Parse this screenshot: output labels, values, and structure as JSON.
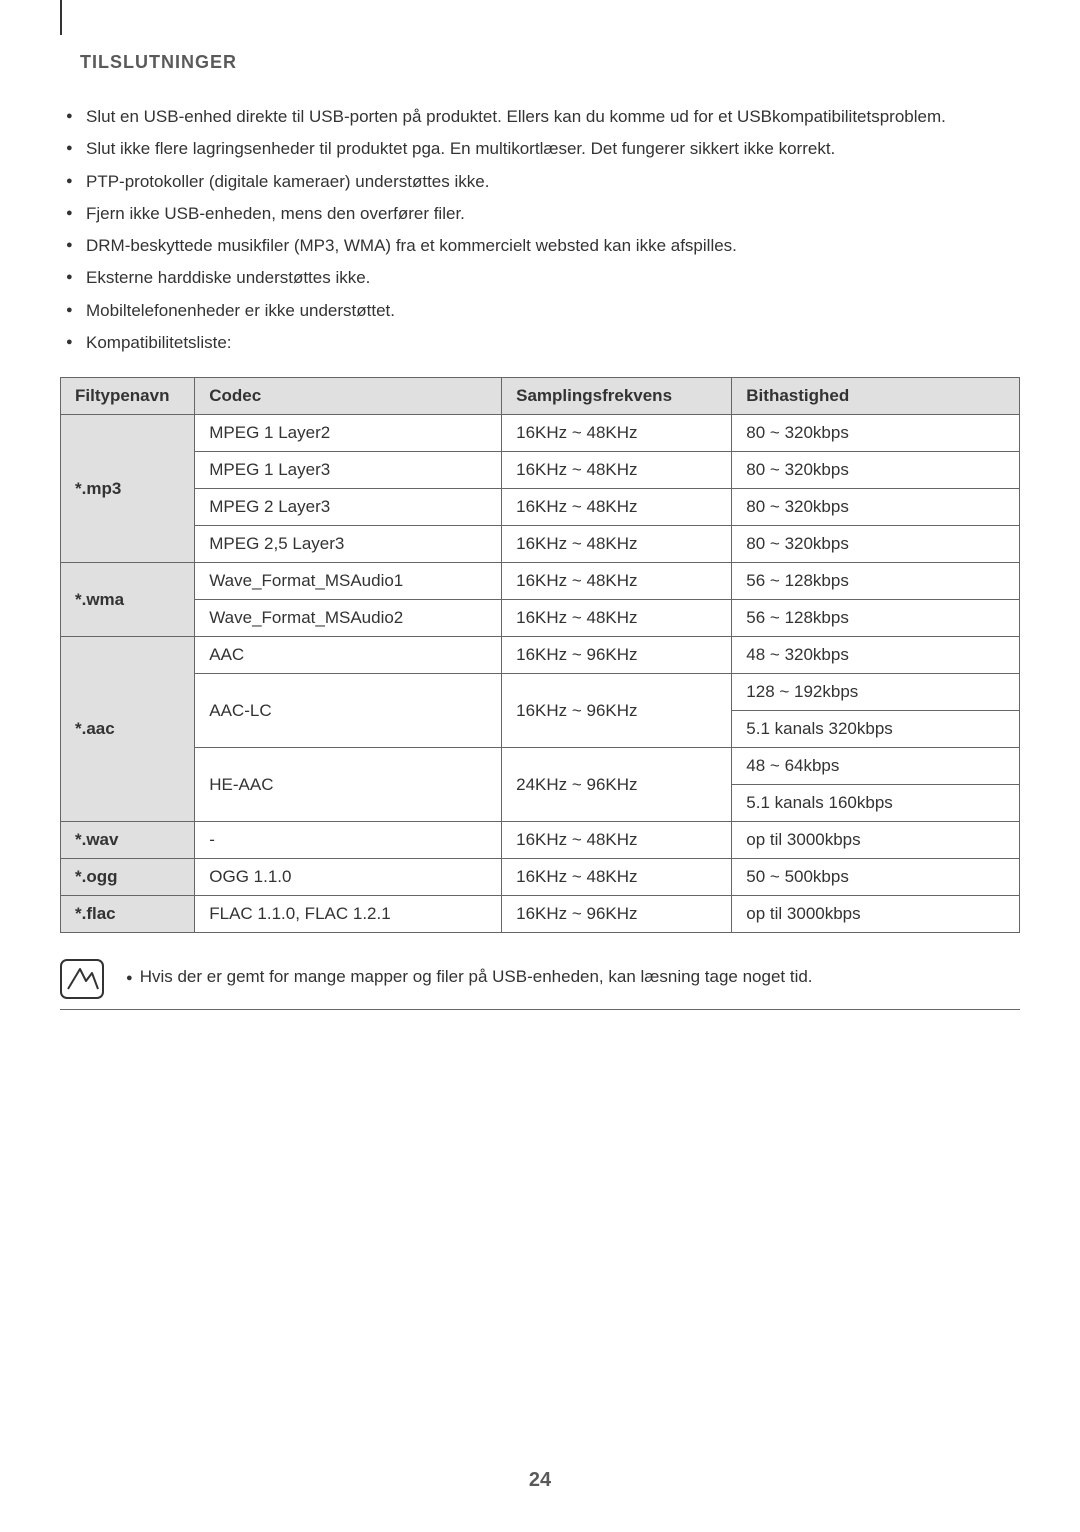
{
  "heading": "TILSLUTNINGER",
  "bullets": [
    "Slut en USB-enhed direkte til USB-porten på produktet. Ellers kan du komme ud for et USBkompatibilitetsproblem.",
    "Slut ikke flere lagringsenheder til produktet pga. En multikortlæser. Det fungerer sikkert ikke korrekt.",
    "PTP-protokoller (digitale kameraer) understøttes ikke.",
    "Fjern ikke USB-enheden, mens den overfører filer.",
    "DRM-beskyttede musikfiler (MP3, WMA) fra et kommercielt websted kan ikke afspilles.",
    "Eksterne harddiske understøttes ikke.",
    "Mobiltelefonenheder er ikke understøttet.",
    "Kompatibilitetsliste:"
  ],
  "table": {
    "headers": {
      "file": "Filtypenavn",
      "codec": "Codec",
      "samp": "Samplingsfrekvens",
      "bit": "Bithastighed"
    },
    "groups": [
      {
        "file": "*.mp3",
        "rows": [
          {
            "codec": "MPEG 1 Layer2",
            "samp": "16KHz ~ 48KHz",
            "bit": [
              "80 ~ 320kbps"
            ]
          },
          {
            "codec": "MPEG 1 Layer3",
            "samp": "16KHz ~ 48KHz",
            "bit": [
              "80 ~ 320kbps"
            ]
          },
          {
            "codec": "MPEG 2 Layer3",
            "samp": "16KHz ~ 48KHz",
            "bit": [
              "80 ~ 320kbps"
            ]
          },
          {
            "codec": "MPEG 2,5 Layer3",
            "samp": "16KHz ~ 48KHz",
            "bit": [
              "80 ~ 320kbps"
            ]
          }
        ]
      },
      {
        "file": "*.wma",
        "rows": [
          {
            "codec": "Wave_Format_MSAudio1",
            "samp": "16KHz ~ 48KHz",
            "bit": [
              "56 ~ 128kbps"
            ]
          },
          {
            "codec": "Wave_Format_MSAudio2",
            "samp": "16KHz ~ 48KHz",
            "bit": [
              "56 ~ 128kbps"
            ]
          }
        ]
      },
      {
        "file": "*.aac",
        "rows": [
          {
            "codec": "AAC",
            "samp": "16KHz ~ 96KHz",
            "bit": [
              "48 ~ 320kbps"
            ]
          },
          {
            "codec": "AAC-LC",
            "samp": "16KHz ~ 96KHz",
            "bit": [
              "128 ~ 192kbps",
              "5.1 kanals 320kbps"
            ]
          },
          {
            "codec": "HE-AAC",
            "samp": "24KHz ~ 96KHz",
            "bit": [
              "48 ~ 64kbps",
              "5.1 kanals 160kbps"
            ]
          }
        ]
      },
      {
        "file": "*.wav",
        "rows": [
          {
            "codec": "-",
            "samp": "16KHz ~ 48KHz",
            "bit": [
              "op til 3000kbps"
            ]
          }
        ]
      },
      {
        "file": "*.ogg",
        "rows": [
          {
            "codec": "OGG 1.1.0",
            "samp": "16KHz ~ 48KHz",
            "bit": [
              "50 ~ 500kbps"
            ]
          }
        ]
      },
      {
        "file": "*.flac",
        "rows": [
          {
            "codec": "FLAC 1.1.0, FLAC 1.2.1",
            "samp": "16KHz ~ 96KHz",
            "bit": [
              "op til 3000kbps"
            ]
          }
        ]
      }
    ]
  },
  "note": "Hvis der er gemt for mange mapper og filer på USB-enheden, kan læsning tage noget tid.",
  "page_number": "24"
}
